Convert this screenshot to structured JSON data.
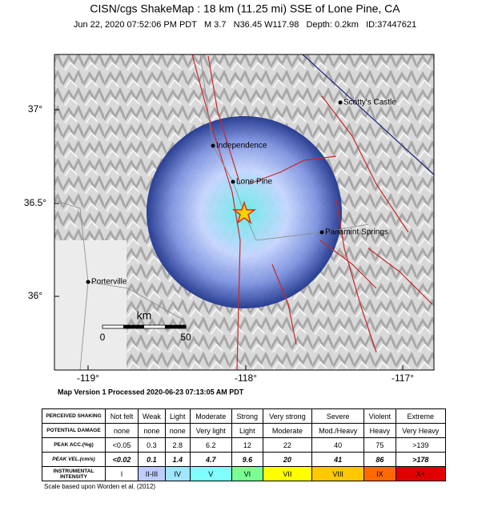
{
  "header": {
    "title": "CISN/cgs ShakeMap : 18 km (11.25 mi) SSE of Lone Pine, CA",
    "subtitle": "Jun 22, 2020 07:52:06 PM PDT   M 3.7   N36.45 W117.98   Depth: 0.2km   ID:37447621"
  },
  "map": {
    "latitude_labels": [
      "37°",
      "36.5°",
      "36°"
    ],
    "longitude_labels": [
      "-119°",
      "-118°",
      "-117°"
    ],
    "places": [
      "Scotty's Castle",
      "Independence",
      "Lone Pine",
      "Panamint Springs",
      "Porterville"
    ],
    "scale_bar": {
      "unit": "km",
      "labels": [
        "0",
        "50"
      ]
    }
  },
  "processing_note": "Map Version 1 Processed 2020-06-23 07:13:05 AM PDT",
  "table": {
    "rows": [
      [
        "PERCEIVED SHAKING",
        "Not felt",
        "Weak",
        "Light",
        "Moderate",
        "Strong",
        "Very strong",
        "Severe",
        "Violent",
        "Extreme"
      ],
      [
        "POTENTIAL DAMAGE",
        "none",
        "none",
        "none",
        "Very light",
        "Light",
        "Moderate",
        "Mod./Heavy",
        "Heavy",
        "Very Heavy"
      ],
      [
        "PEAK ACC.(%g)",
        "<0.05",
        "0.3",
        "2.8",
        "6.2",
        "12",
        "22",
        "40",
        "75",
        ">139"
      ],
      [
        "PEAK VEL.(cm/s)",
        "<0.02",
        "0.1",
        "1.4",
        "4.7",
        "9.6",
        "20",
        "41",
        "86",
        ">178"
      ],
      [
        "INSTRUMENTAL INTENSITY",
        "I",
        "II-III",
        "IV",
        "V",
        "VI",
        "VII",
        "VIII",
        "IX",
        "X+"
      ]
    ]
  },
  "footnote": "Scale based upon Worden et al. (2012)"
}
